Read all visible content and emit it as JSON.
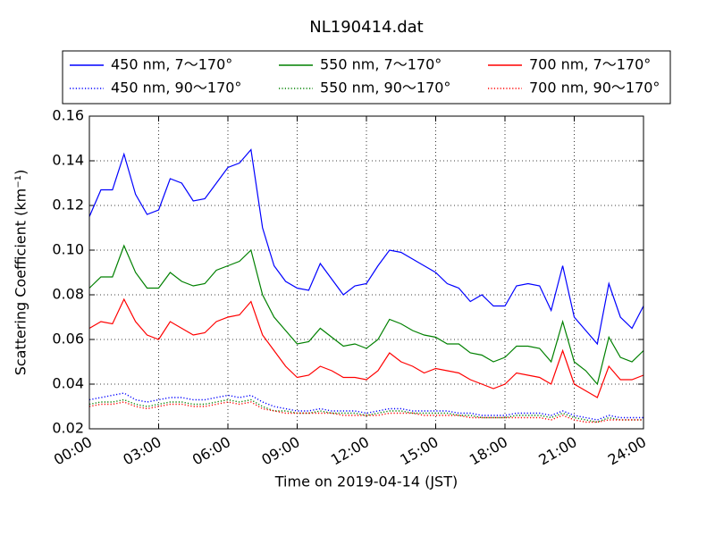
{
  "chart_data": {
    "type": "line",
    "title": "NL190414.dat",
    "x_label": "Time on 2019-04-14 (JST)",
    "y_label": "Scattering Coefficient (km⁻¹)",
    "xlim": [
      0,
      24
    ],
    "ylim": [
      0.02,
      0.16
    ],
    "xticks": [
      {
        "value": 0,
        "label": "00:00"
      },
      {
        "value": 3,
        "label": "03:00"
      },
      {
        "value": 6,
        "label": "06:00"
      },
      {
        "value": 9,
        "label": "09:00"
      },
      {
        "value": 12,
        "label": "12:00"
      },
      {
        "value": 15,
        "label": "15:00"
      },
      {
        "value": 18,
        "label": "18:00"
      },
      {
        "value": 21,
        "label": "21:00"
      },
      {
        "value": 24,
        "label": "24:00"
      }
    ],
    "yticks": [
      0.02,
      0.04,
      0.06,
      0.08,
      {
        "value": 0.1,
        "label": "0.10"
      },
      0.12,
      0.14,
      0.16
    ],
    "grid": true,
    "legend_position": "top",
    "x": [
      0,
      0.5,
      1,
      1.5,
      2,
      2.5,
      3,
      3.5,
      4,
      4.5,
      5,
      5.5,
      6,
      6.5,
      7,
      7.5,
      8,
      8.5,
      9,
      9.5,
      10,
      10.5,
      11,
      11.5,
      12,
      12.5,
      13,
      13.5,
      14,
      14.5,
      15,
      15.5,
      16,
      16.5,
      17,
      17.5,
      18,
      18.5,
      19,
      19.5,
      20,
      20.5,
      21,
      21.5,
      22,
      22.5,
      23,
      23.5,
      24
    ],
    "series": [
      {
        "name": "450 nm, 7～170°",
        "color": "#0000ff",
        "linestyle": "solid",
        "values": [
          0.115,
          0.127,
          0.127,
          0.143,
          0.125,
          0.116,
          0.118,
          0.132,
          0.13,
          0.122,
          0.123,
          0.13,
          0.137,
          0.139,
          0.145,
          0.11,
          0.093,
          0.086,
          0.083,
          0.082,
          0.094,
          0.087,
          0.08,
          0.084,
          0.085,
          0.093,
          0.1,
          0.099,
          0.096,
          0.093,
          0.09,
          0.085,
          0.083,
          0.077,
          0.08,
          0.075,
          0.075,
          0.084,
          0.085,
          0.084,
          0.073,
          0.093,
          0.07,
          0.064,
          0.058,
          0.085,
          0.07,
          0.065,
          0.075
        ]
      },
      {
        "name": "450 nm, 90～170°",
        "color": "#0000ff",
        "linestyle": "dotted",
        "values": [
          0.033,
          0.034,
          0.035,
          0.036,
          0.033,
          0.032,
          0.033,
          0.034,
          0.034,
          0.033,
          0.033,
          0.034,
          0.035,
          0.034,
          0.035,
          0.032,
          0.03,
          0.029,
          0.028,
          0.028,
          0.029,
          0.028,
          0.028,
          0.028,
          0.027,
          0.028,
          0.029,
          0.029,
          0.028,
          0.028,
          0.028,
          0.028,
          0.027,
          0.027,
          0.026,
          0.026,
          0.026,
          0.027,
          0.027,
          0.027,
          0.026,
          0.028,
          0.026,
          0.025,
          0.024,
          0.026,
          0.025,
          0.025,
          0.025
        ]
      },
      {
        "name": "550 nm, 7～170°",
        "color": "#008000",
        "linestyle": "solid",
        "values": [
          0.083,
          0.088,
          0.088,
          0.102,
          0.09,
          0.083,
          0.083,
          0.09,
          0.086,
          0.084,
          0.085,
          0.091,
          0.093,
          0.095,
          0.1,
          0.08,
          0.07,
          0.064,
          0.058,
          0.059,
          0.065,
          0.061,
          0.057,
          0.058,
          0.056,
          0.06,
          0.069,
          0.067,
          0.064,
          0.062,
          0.061,
          0.058,
          0.058,
          0.054,
          0.053,
          0.05,
          0.052,
          0.057,
          0.057,
          0.056,
          0.05,
          0.068,
          0.05,
          0.046,
          0.04,
          0.061,
          0.052,
          0.05,
          0.055
        ]
      },
      {
        "name": "550 nm, 90～170°",
        "color": "#008000",
        "linestyle": "dotted",
        "values": [
          0.031,
          0.032,
          0.032,
          0.033,
          0.031,
          0.03,
          0.031,
          0.032,
          0.032,
          0.031,
          0.031,
          0.032,
          0.033,
          0.032,
          0.033,
          0.03,
          0.028,
          0.028,
          0.027,
          0.027,
          0.028,
          0.027,
          0.027,
          0.027,
          0.026,
          0.027,
          0.028,
          0.028,
          0.027,
          0.027,
          0.027,
          0.027,
          0.026,
          0.026,
          0.025,
          0.025,
          0.025,
          0.026,
          0.026,
          0.026,
          0.025,
          0.027,
          0.025,
          0.024,
          0.023,
          0.025,
          0.024,
          0.024,
          0.024
        ]
      },
      {
        "name": "700 nm, 7～170°",
        "color": "#ff0000",
        "linestyle": "solid",
        "values": [
          0.065,
          0.068,
          0.067,
          0.078,
          0.068,
          0.062,
          0.06,
          0.068,
          0.065,
          0.062,
          0.063,
          0.068,
          0.07,
          0.071,
          0.077,
          0.062,
          0.055,
          0.048,
          0.043,
          0.044,
          0.048,
          0.046,
          0.043,
          0.043,
          0.042,
          0.046,
          0.054,
          0.05,
          0.048,
          0.045,
          0.047,
          0.046,
          0.045,
          0.042,
          0.04,
          0.038,
          0.04,
          0.045,
          0.044,
          0.043,
          0.04,
          0.055,
          0.04,
          0.037,
          0.034,
          0.048,
          0.042,
          0.042,
          0.044
        ]
      },
      {
        "name": "700 nm, 90～170°",
        "color": "#ff0000",
        "linestyle": "dotted",
        "values": [
          0.03,
          0.031,
          0.031,
          0.032,
          0.03,
          0.029,
          0.03,
          0.031,
          0.031,
          0.03,
          0.03,
          0.031,
          0.032,
          0.031,
          0.032,
          0.029,
          0.028,
          0.027,
          0.027,
          0.027,
          0.027,
          0.027,
          0.026,
          0.026,
          0.026,
          0.026,
          0.027,
          0.027,
          0.027,
          0.026,
          0.026,
          0.026,
          0.026,
          0.025,
          0.025,
          0.025,
          0.025,
          0.025,
          0.025,
          0.025,
          0.024,
          0.026,
          0.024,
          0.023,
          0.023,
          0.024,
          0.024,
          0.024,
          0.024
        ]
      }
    ]
  }
}
